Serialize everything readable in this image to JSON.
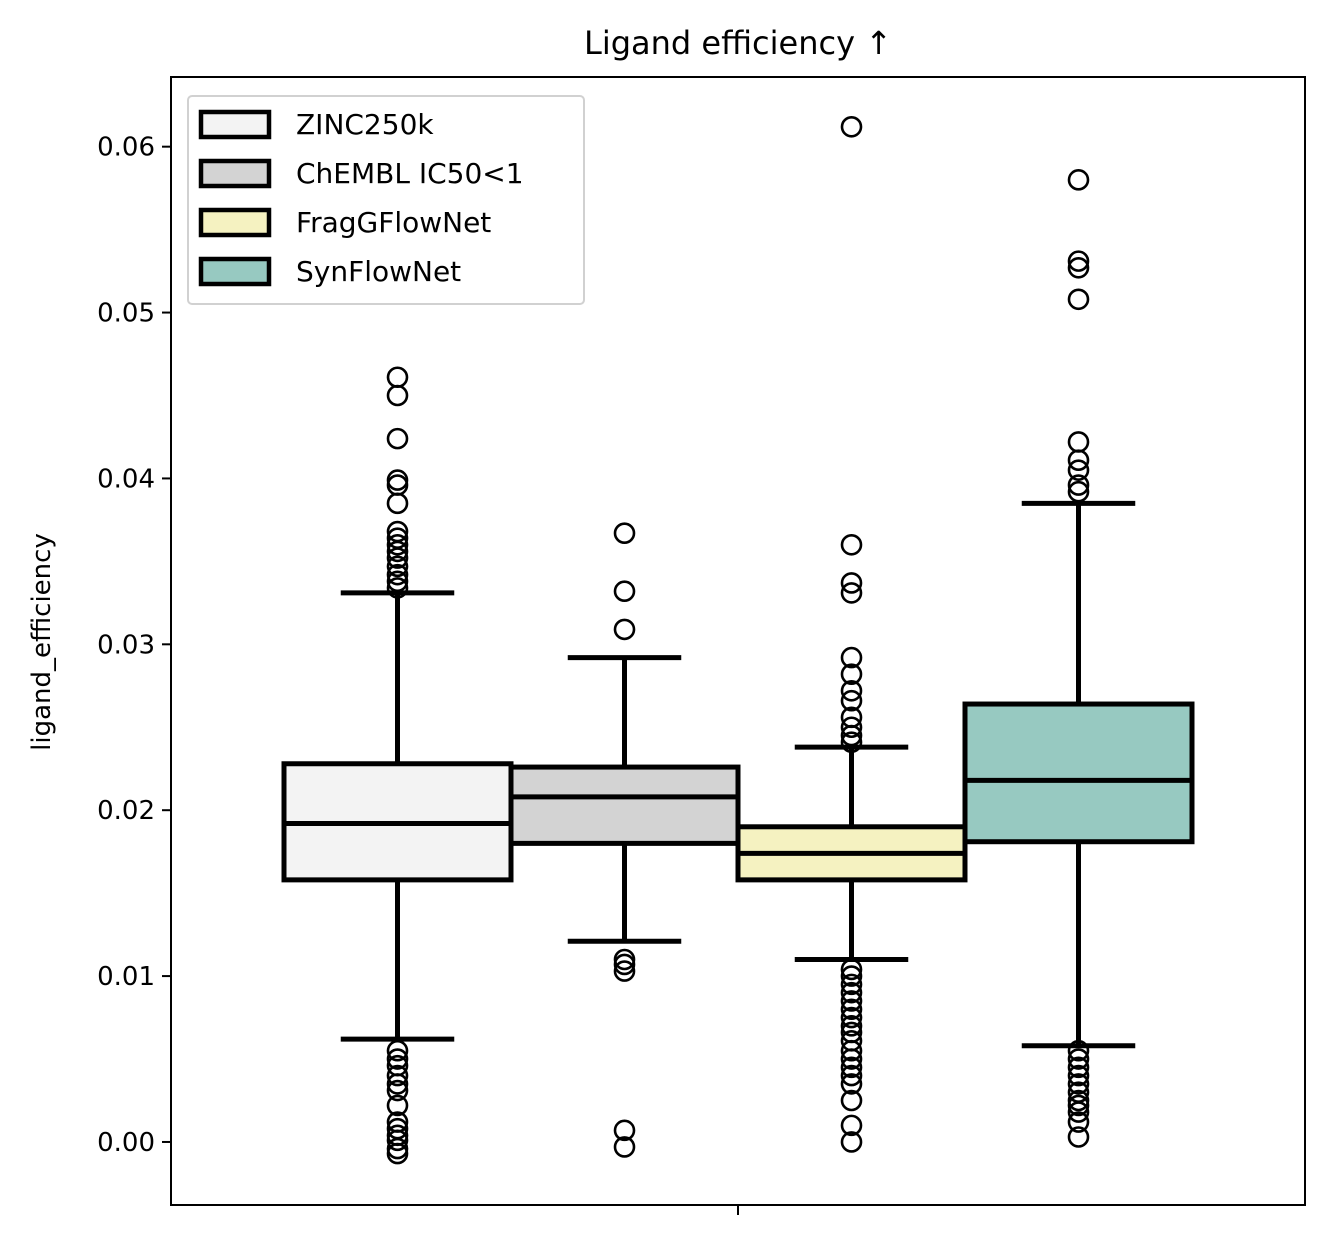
{
  "chart_data": {
    "type": "box",
    "title": "Ligand efficiency ↑",
    "xlabel": "",
    "ylabel": "ligand_efficiency",
    "ylim": [
      -0.0038,
      0.0642
    ],
    "yticks": [
      0.0,
      0.01,
      0.02,
      0.03,
      0.04,
      0.05,
      0.06
    ],
    "ytick_labels": [
      "0.00",
      "0.01",
      "0.02",
      "0.03",
      "0.04",
      "0.05",
      "0.06"
    ],
    "legend_position": "top-left",
    "series": [
      {
        "name": "ZINC250k",
        "color": "#f3f3f3",
        "q1": 0.0158,
        "median": 0.0192,
        "q3": 0.0228,
        "whisker_low": 0.0062,
        "whisker_high": 0.0331,
        "outliers": [
          0.0461,
          0.045,
          0.0424,
          0.0399,
          0.0396,
          0.0385,
          0.0368,
          0.0364,
          0.036,
          0.0356,
          0.0352,
          0.0347,
          0.0342,
          0.0338,
          0.0334,
          0.0055,
          0.005,
          0.0046,
          0.004,
          0.0035,
          0.0031,
          0.0022,
          0.0012,
          0.0008,
          0.0004,
          0.0001,
          -0.0004,
          -0.0007
        ]
      },
      {
        "name": "ChEMBL IC50<1",
        "color": "#d3d3d3",
        "q1": 0.018,
        "median": 0.0208,
        "q3": 0.0226,
        "whisker_low": 0.0121,
        "whisker_high": 0.0292,
        "outliers": [
          0.0367,
          0.0332,
          0.0309,
          0.011,
          0.0107,
          0.0103,
          0.0007,
          -0.0003
        ]
      },
      {
        "name": "FragGFlowNet",
        "color": "#f5f2c1",
        "q1": 0.0158,
        "median": 0.0174,
        "q3": 0.019,
        "whisker_low": 0.011,
        "whisker_high": 0.0238,
        "outliers": [
          0.0612,
          0.036,
          0.0337,
          0.0331,
          0.0292,
          0.0282,
          0.0272,
          0.0266,
          0.0256,
          0.025,
          0.0245,
          0.0241,
          0.0104,
          0.01,
          0.0095,
          0.009,
          0.0085,
          0.008,
          0.0075,
          0.007,
          0.0066,
          0.0061,
          0.0055,
          0.005,
          0.0045,
          0.004,
          0.0035,
          0.0025,
          0.001,
          0.0
        ]
      },
      {
        "name": "SynFlowNet",
        "color": "#97c9c1",
        "q1": 0.0181,
        "median": 0.0218,
        "q3": 0.0264,
        "whisker_low": 0.0058,
        "whisker_high": 0.0385,
        "outliers": [
          0.058,
          0.0531,
          0.0527,
          0.0508,
          0.0422,
          0.0411,
          0.0405,
          0.0396,
          0.0392,
          0.0055,
          0.005,
          0.0045,
          0.004,
          0.0035,
          0.003,
          0.0025,
          0.0022,
          0.0018,
          0.0012,
          0.0003
        ]
      }
    ]
  }
}
